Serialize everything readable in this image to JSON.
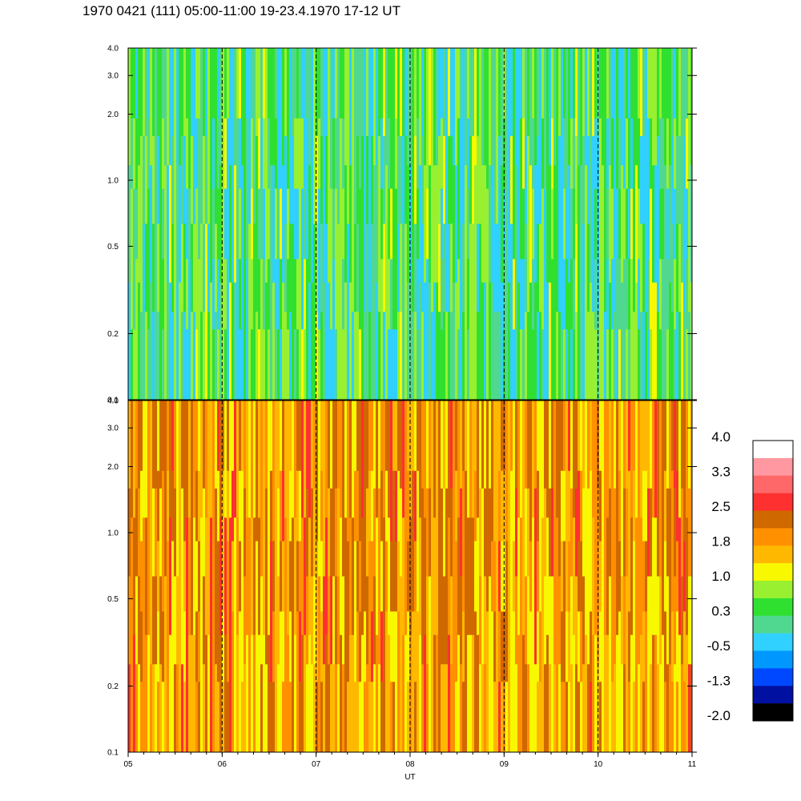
{
  "title": "1970 0421 (111) 05:00-11:00 19-23.4.1970  17-12 UT",
  "chart_data": {
    "type": "heatmap",
    "panels": [
      {
        "name": "",
        "y_ticks": [
          "0.1",
          "0.2",
          "0.5",
          "1.0",
          "2.0",
          "3.0",
          "4.0"
        ],
        "y_tick_values": [
          0.1,
          0.2,
          0.5,
          1.0,
          2.0,
          3.0,
          4.0
        ],
        "ylim": [
          0.1,
          4.0
        ],
        "yscale": "log",
        "dominant_level": 0.3
      },
      {
        "name": "",
        "y_ticks": [
          "0.1",
          "0.2",
          "0.5",
          "1.0",
          "2.0",
          "3.0",
          "4.0"
        ],
        "y_tick_values": [
          0.1,
          0.2,
          0.5,
          1.0,
          2.0,
          3.0,
          4.0
        ],
        "ylim": [
          0.1,
          4.0
        ],
        "yscale": "log",
        "dominant_level": 1.8
      }
    ],
    "x_ticks": [
      "05",
      "06",
      "07",
      "08",
      "09",
      "10",
      "11"
    ],
    "x_tick_values": [
      5,
      6,
      7,
      8,
      9,
      10,
      11
    ],
    "xlim": [
      5,
      11
    ],
    "xlabel": "UT",
    "hour_markers": [
      6,
      7,
      8,
      9,
      10
    ],
    "colorbar": {
      "labels": [
        "4.0",
        "3.3",
        "2.5",
        "1.8",
        "1.0",
        "0.3",
        "-0.5",
        "-1.3",
        "-2.0"
      ],
      "range": [
        -2.0,
        4.0
      ],
      "colors": [
        "#000000",
        "#0010a0",
        "#0048ff",
        "#0098ff",
        "#30d0ff",
        "#50d890",
        "#30e030",
        "#98f030",
        "#f8f800",
        "#ffb800",
        "#ff9000",
        "#d06800",
        "#ff3030",
        "#ff6868",
        "#ff98a0",
        "#ffffff"
      ]
    }
  }
}
